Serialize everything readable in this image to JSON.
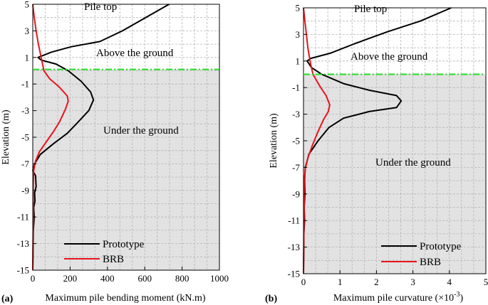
{
  "chart_data": [
    {
      "type": "line",
      "panel_label": "(a)",
      "xlabel": "Maximum pile bending moment (kN.m)",
      "ylabel": "Elevation (m)",
      "xlim": [
        0,
        1000
      ],
      "ylim": [
        -15,
        5
      ],
      "xticks": [
        "0",
        "200",
        "400",
        "600",
        "800",
        "1000"
      ],
      "yticks": [
        "5",
        "3",
        "1",
        "-1",
        "-3",
        "-5",
        "-7",
        "-9",
        "-11",
        "-13",
        "-15"
      ],
      "grid": true,
      "ground_level": 0.1,
      "annotations": {
        "pile_top": "Pile top",
        "above": "Above the ground",
        "under": "Under the ground"
      },
      "legend": {
        "position": "bottom-center"
      },
      "series": [
        {
          "name": "Prototype",
          "color": "#000000",
          "points": [
            [
              730,
              5
            ],
            [
              480,
              3
            ],
            [
              360,
              2.2
            ],
            [
              205,
              1.8
            ],
            [
              100,
              1.4
            ],
            [
              28,
              1
            ],
            [
              45,
              0.8
            ],
            [
              125,
              0.5
            ],
            [
              190,
              0
            ],
            [
              260,
              -0.8
            ],
            [
              310,
              -1.6
            ],
            [
              325,
              -2.2
            ],
            [
              300,
              -3
            ],
            [
              240,
              -3.9
            ],
            [
              185,
              -4.7
            ],
            [
              110,
              -5.5
            ],
            [
              40,
              -6.3
            ],
            [
              10,
              -7
            ],
            [
              0,
              -7.5
            ],
            [
              15,
              -7.9
            ],
            [
              18,
              -8.7
            ],
            [
              10,
              -9.2
            ],
            [
              12,
              -9.8
            ],
            [
              5,
              -10.3
            ],
            [
              8,
              -11
            ],
            [
              3,
              -12
            ],
            [
              2,
              -13
            ],
            [
              1,
              -14
            ],
            [
              0,
              -15
            ]
          ]
        },
        {
          "name": "BRB",
          "color": "#e8141e",
          "points": [
            [
              0,
              5
            ],
            [
              8,
              4
            ],
            [
              18,
              3
            ],
            [
              30,
              2
            ],
            [
              45,
              1
            ],
            [
              60,
              0
            ],
            [
              90,
              -0.6
            ],
            [
              140,
              -1.2
            ],
            [
              185,
              -1.9
            ],
            [
              190,
              -2.3
            ],
            [
              175,
              -2.9
            ],
            [
              145,
              -3.8
            ],
            [
              110,
              -4.6
            ],
            [
              70,
              -5.4
            ],
            [
              35,
              -6.1
            ],
            [
              15,
              -6.8
            ],
            [
              5,
              -7.5
            ],
            [
              2,
              -9
            ],
            [
              3,
              -11
            ],
            [
              1,
              -13
            ],
            [
              0,
              -15
            ]
          ]
        }
      ]
    },
    {
      "type": "line",
      "panel_label": "(b)",
      "xlabel": "Maximum pile curvature",
      "xlabel_unit": "(×10",
      "xlabel_exp": "-3",
      "xlabel_close": ")",
      "ylabel": "Elevation (m)",
      "xlim": [
        0,
        5
      ],
      "ylim": [
        -15,
        5
      ],
      "xticks": [
        "0",
        "1",
        "2",
        "3",
        "4",
        "5"
      ],
      "yticks": [
        "5",
        "3",
        "1",
        "-1",
        "-3",
        "-5",
        "-7",
        "-9",
        "-11",
        "-13",
        "-15"
      ],
      "grid": true,
      "ground_level": 0.0,
      "annotations": {
        "pile_top": "Pile top",
        "above": "Above the ground",
        "under": "Under the ground"
      },
      "legend": {
        "position": "bottom-right"
      },
      "series": [
        {
          "name": "Prototype",
          "color": "#000000",
          "points": [
            [
              4.05,
              5
            ],
            [
              3.2,
              4
            ],
            [
              2.3,
              3.2
            ],
            [
              1.4,
              2.3
            ],
            [
              0.75,
              1.6
            ],
            [
              0.2,
              1.2
            ],
            [
              0.1,
              1
            ],
            [
              0.22,
              0.5
            ],
            [
              0.5,
              0
            ],
            [
              1.1,
              -0.7
            ],
            [
              1.8,
              -1.2
            ],
            [
              2.55,
              -1.6
            ],
            [
              2.68,
              -2
            ],
            [
              2.55,
              -2.5
            ],
            [
              1.8,
              -2.8
            ],
            [
              1.1,
              -3.3
            ],
            [
              0.7,
              -4
            ],
            [
              0.4,
              -5
            ],
            [
              0.15,
              -6
            ],
            [
              0.05,
              -7
            ],
            [
              0.03,
              -8
            ],
            [
              0.04,
              -9
            ],
            [
              0.02,
              -10
            ],
            [
              0.03,
              -11
            ],
            [
              0.01,
              -12
            ],
            [
              0.01,
              -13
            ],
            [
              0,
              -15
            ]
          ]
        },
        {
          "name": "BRB",
          "color": "#e8141e",
          "points": [
            [
              0,
              5
            ],
            [
              0.04,
              4
            ],
            [
              0.08,
              3
            ],
            [
              0.12,
              2
            ],
            [
              0.18,
              1
            ],
            [
              0.26,
              0
            ],
            [
              0.45,
              -0.9
            ],
            [
              0.62,
              -1.6
            ],
            [
              0.72,
              -2.3
            ],
            [
              0.68,
              -2.8
            ],
            [
              0.55,
              -3.4
            ],
            [
              0.4,
              -4.3
            ],
            [
              0.25,
              -5.3
            ],
            [
              0.12,
              -6.3
            ],
            [
              0.05,
              -7.1
            ],
            [
              0.02,
              -8
            ],
            [
              0.02,
              -10
            ],
            [
              0.01,
              -12
            ],
            [
              0,
              -15
            ]
          ]
        }
      ]
    }
  ]
}
